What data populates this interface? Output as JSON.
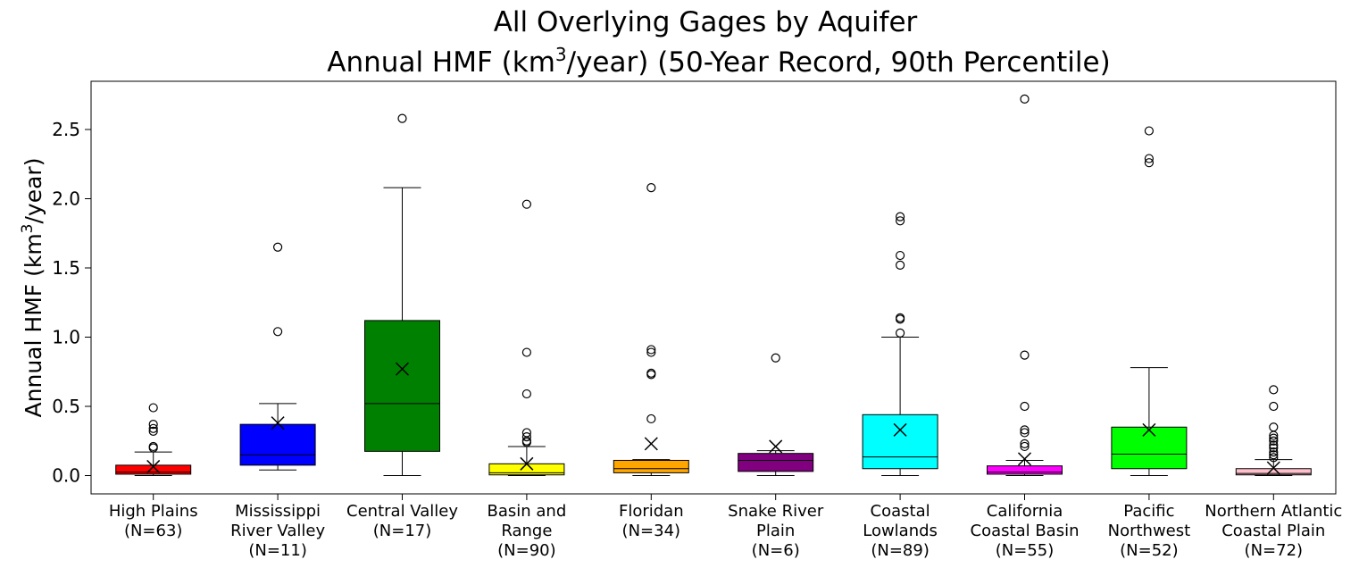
{
  "chart_data": {
    "type": "box",
    "title_line1": "All Overlying Gages by Aquifer",
    "title_line2_pre": "Annual HMF (km",
    "title_line2_sup": "3",
    "title_line2_post": "/year) (50-Year Record, 90th Percentile)",
    "ylabel_pre": "Annual HMF (km",
    "ylabel_sup": "3",
    "ylabel_post": "/year)",
    "ylim": [
      -0.13,
      2.85
    ],
    "yticks": [
      "0.0",
      "0.5",
      "1.0",
      "1.5",
      "2.0",
      "2.5"
    ],
    "grid": false,
    "categories": [
      {
        "label_lines": [
          "High Plains",
          "(N=63)"
        ],
        "color": "#ff0000",
        "whisker_low": 0.0,
        "q1": 0.01,
        "median": 0.025,
        "q3": 0.075,
        "whisker_high": 0.17,
        "mean": 0.065,
        "outliers": [
          0.2,
          0.21,
          0.32,
          0.34,
          0.37,
          0.49
        ]
      },
      {
        "label_lines": [
          "Mississippi",
          "River Valley",
          "(N=11)"
        ],
        "color": "#0000ff",
        "whisker_low": 0.04,
        "q1": 0.075,
        "median": 0.15,
        "q3": 0.37,
        "whisker_high": 0.52,
        "mean": 0.38,
        "outliers": [
          1.04,
          1.65
        ]
      },
      {
        "label_lines": [
          "Central Valley",
          "(N=17)"
        ],
        "color": "#008000",
        "whisker_low": 0.0,
        "q1": 0.175,
        "median": 0.52,
        "q3": 1.12,
        "whisker_high": 2.08,
        "mean": 0.77,
        "outliers": [
          2.58
        ]
      },
      {
        "label_lines": [
          "Basin and",
          "Range",
          "(N=90)"
        ],
        "color": "#ffff00",
        "whisker_low": 0.0,
        "q1": 0.005,
        "median": 0.02,
        "q3": 0.085,
        "whisker_high": 0.21,
        "mean": 0.085,
        "outliers": [
          0.24,
          0.25,
          0.28,
          0.31,
          0.59,
          0.89,
          1.96
        ]
      },
      {
        "label_lines": [
          "Floridan",
          "(N=34)"
        ],
        "color": "#ffa500",
        "whisker_low": 0.0,
        "q1": 0.02,
        "median": 0.05,
        "q3": 0.11,
        "whisker_high": 0.115,
        "mean": 0.23,
        "outliers": [
          0.41,
          0.73,
          0.74,
          0.89,
          0.91,
          2.08
        ]
      },
      {
        "label_lines": [
          "Snake River",
          "Plain",
          "(N=6)"
        ],
        "color": "#800080",
        "whisker_low": 0.0,
        "q1": 0.03,
        "median": 0.11,
        "q3": 0.16,
        "whisker_high": 0.18,
        "mean": 0.21,
        "outliers": [
          0.85
        ]
      },
      {
        "label_lines": [
          "Coastal",
          "Lowlands",
          "(N=89)"
        ],
        "color": "#00ffff",
        "whisker_low": 0.0,
        "q1": 0.05,
        "median": 0.135,
        "q3": 0.44,
        "whisker_high": 1.0,
        "mean": 0.33,
        "outliers": [
          1.03,
          1.13,
          1.14,
          1.52,
          1.59,
          1.84,
          1.87
        ]
      },
      {
        "label_lines": [
          "California",
          "Coastal Basin",
          "(N=55)"
        ],
        "color": "#ff00ff",
        "whisker_low": 0.0,
        "q1": 0.01,
        "median": 0.025,
        "q3": 0.07,
        "whisker_high": 0.11,
        "mean": 0.12,
        "outliers": [
          0.21,
          0.23,
          0.31,
          0.33,
          0.5,
          0.87,
          2.72
        ]
      },
      {
        "label_lines": [
          "Pacific",
          "Northwest",
          "(N=52)"
        ],
        "color": "#00ff00",
        "whisker_low": 0.0,
        "q1": 0.05,
        "median": 0.155,
        "q3": 0.35,
        "whisker_high": 0.78,
        "mean": 0.33,
        "outliers": [
          2.26,
          2.29,
          2.49
        ]
      },
      {
        "label_lines": [
          "Northern Atlantic",
          "Coastal Plain",
          "(N=72)"
        ],
        "color": "#ffc0cb",
        "whisker_low": 0.0,
        "q1": 0.005,
        "median": 0.015,
        "q3": 0.05,
        "whisker_high": 0.115,
        "mean": 0.055,
        "outliers": [
          0.13,
          0.15,
          0.17,
          0.2,
          0.22,
          0.25,
          0.27,
          0.29,
          0.35,
          0.5,
          0.62
        ]
      }
    ]
  }
}
